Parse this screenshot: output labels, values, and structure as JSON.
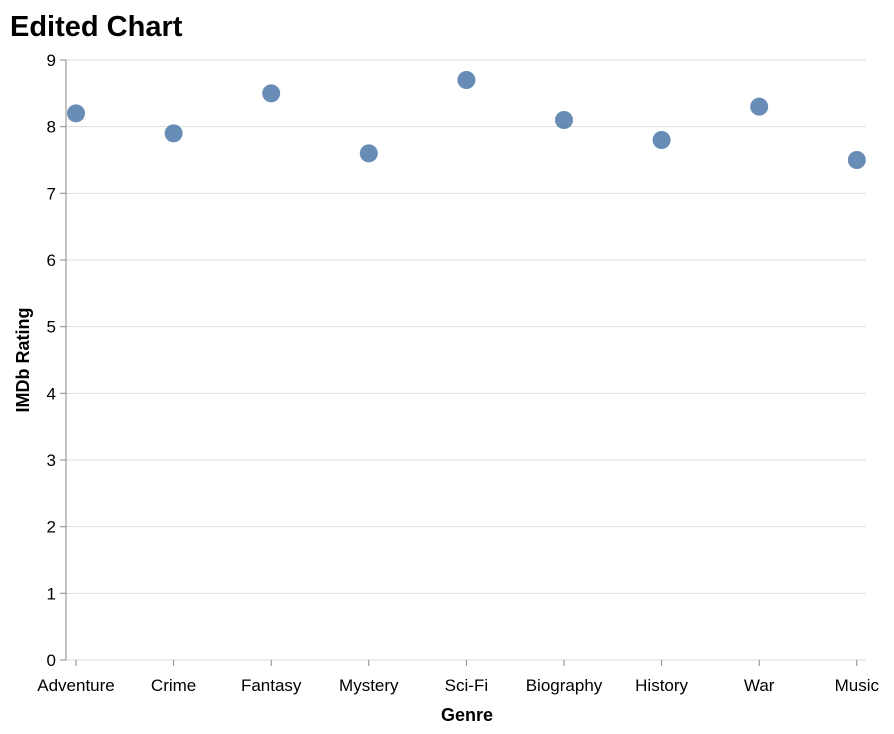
{
  "chart_data": {
    "type": "scatter",
    "title": "Edited Chart",
    "xlabel": "Genre",
    "ylabel": "IMDb Rating",
    "categories": [
      "Adventure",
      "Crime",
      "Fantasy",
      "Mystery",
      "Sci-Fi",
      "Biography",
      "History",
      "War",
      "Music"
    ],
    "values": [
      8.2,
      7.9,
      8.5,
      7.6,
      8.7,
      8.1,
      7.8,
      8.3,
      7.5
    ],
    "ylim": [
      0,
      9
    ],
    "yticks": [
      0,
      1,
      2,
      3,
      4,
      5,
      6,
      7,
      8,
      9
    ],
    "grid": true,
    "legend": "none",
    "point_color": "#4c78a8",
    "grid_color": "#dddddd",
    "axis_color": "#888888"
  }
}
